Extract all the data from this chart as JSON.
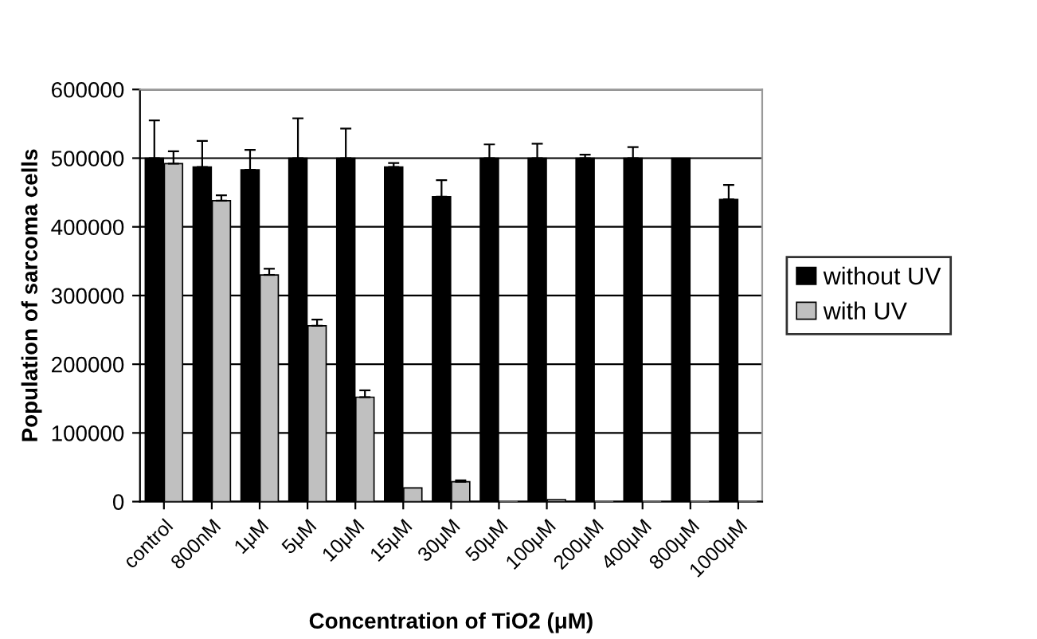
{
  "chart_data": {
    "type": "bar",
    "xlabel": "Concentration of TiO2 (μM)",
    "ylabel": "Population of sarcoma cells",
    "categories": [
      "control",
      "800nM",
      "1μM",
      "5μM",
      "10μM",
      "15μM",
      "30μM",
      "50μM",
      "100μM",
      "200μM",
      "400μM",
      "800μM",
      "1000μM"
    ],
    "series": [
      {
        "name": "without UV",
        "color": "#000000",
        "values": [
          500000,
          487000,
          483000,
          500000,
          500000,
          487000,
          444000,
          500000,
          500000,
          500000,
          500000,
          500000,
          440000
        ],
        "errors": [
          55000,
          38000,
          29000,
          58000,
          43000,
          6000,
          24000,
          20000,
          21000,
          5000,
          16000,
          null,
          21000
        ]
      },
      {
        "name": "with UV",
        "color": "#c0c0c0",
        "values": [
          492000,
          438000,
          330000,
          256000,
          152000,
          20000,
          29000,
          0,
          3000,
          0,
          0,
          0,
          0
        ],
        "errors": [
          18000,
          8000,
          9000,
          9000,
          10000,
          null,
          2000,
          null,
          null,
          null,
          null,
          null,
          null
        ]
      }
    ],
    "ylim": [
      0,
      600000
    ],
    "yticks": [
      0,
      100000,
      200000,
      300000,
      400000,
      500000,
      600000
    ],
    "grid": "y",
    "legend": "right"
  }
}
